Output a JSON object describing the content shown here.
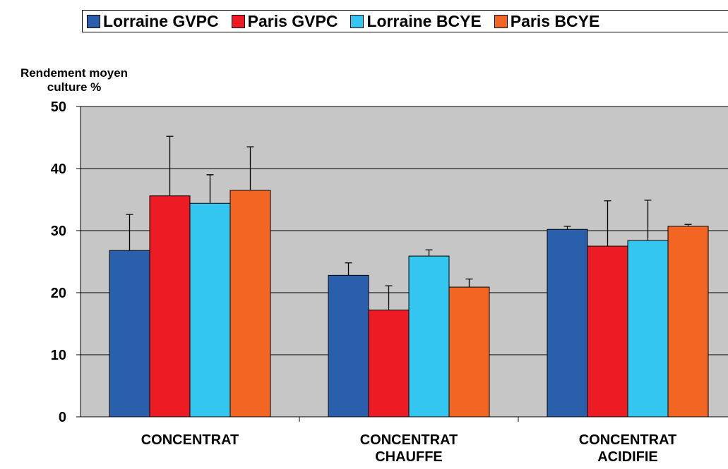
{
  "chart_data": {
    "type": "bar",
    "y_label": "Rendement moyen culture %",
    "categories": [
      "CONCENTRAT",
      "CONCENTRAT CHAUFFE",
      "CONCENTRAT ACIDIFIE"
    ],
    "series": [
      {
        "name": "Lorraine GVPC",
        "color": "#2a5fac",
        "values": [
          26.8,
          22.8,
          30.2
        ],
        "errors": [
          5.8,
          2.0,
          0.5
        ]
      },
      {
        "name": "Paris GVPC",
        "color": "#ed1c24",
        "values": [
          35.6,
          17.2,
          27.5
        ],
        "errors": [
          9.6,
          3.9,
          7.3
        ]
      },
      {
        "name": "Lorraine BCYE",
        "color": "#33c6f0",
        "values": [
          34.4,
          25.9,
          28.4
        ],
        "errors": [
          4.6,
          1.0,
          6.5
        ]
      },
      {
        "name": "Paris BCYE",
        "color": "#f26522",
        "values": [
          36.5,
          20.9,
          30.7
        ],
        "errors": [
          7.0,
          1.3,
          0.3
        ]
      }
    ],
    "ylim": [
      0,
      50
    ],
    "yticks": [
      0,
      10,
      20,
      30,
      40,
      50
    ],
    "grid": true,
    "legend": "top"
  }
}
